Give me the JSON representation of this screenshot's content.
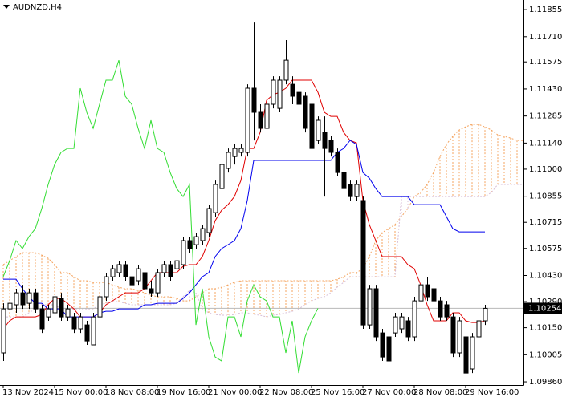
{
  "chart_data": {
    "type": "candlestick",
    "title": "AUDNZD,H4",
    "categories": [
      "13 Nov 2024",
      null,
      null,
      null,
      null,
      null,
      null,
      null,
      "15 Nov 00:00",
      null,
      null,
      null,
      null,
      null,
      null,
      null,
      "18 Nov 08:00",
      null,
      null,
      null,
      null,
      null,
      null,
      null,
      "19 Nov 16:00",
      null,
      null,
      null,
      null,
      null,
      null,
      null,
      "21 Nov 00:00",
      null,
      null,
      null,
      null,
      null,
      null,
      null,
      "22 Nov 08:00",
      null,
      null,
      null,
      null,
      null,
      null,
      null,
      "25 Nov 16:00",
      null,
      null,
      null,
      null,
      null,
      null,
      null,
      "27 Nov 00:00",
      null,
      null,
      null,
      null,
      null,
      null,
      null,
      "28 Nov 08:00",
      null,
      null,
      null,
      null,
      null,
      null,
      null,
      "29 Nov 16:00",
      null,
      null,
      null,
      null,
      null,
      null,
      null,
      null,
      null
    ],
    "candles": {
      "up_color": "#ffffff",
      "down_color": "#000000",
      "open": [
        1.10015,
        1.10251,
        1.10273,
        1.10337,
        1.10281,
        1.10337,
        1.10251,
        1.10208,
        1.1023,
        1.10307,
        1.10208,
        1.10208,
        1.10144,
        1.10165,
        1.10058,
        1.10208,
        1.10316,
        1.10423,
        1.10445,
        1.10488,
        1.10423,
        1.10402,
        1.10445,
        1.10359,
        1.10337,
        1.10445,
        1.10488,
        1.10466,
        1.10488,
        1.10617,
        1.10595,
        1.10617,
        1.1066,
        1.10767,
        1.10896,
        1.11004,
        1.11068,
        1.1109,
        1.1109,
        1.11434,
        1.11305,
        1.11219,
        1.11348,
        1.11326,
        1.11477,
        1.11455,
        1.11412,
        1.11391,
        1.11348,
        1.11154,
        1.11197,
        1.11154,
        1.1109,
        1.10982,
        1.10918,
        1.10853,
        1.10832,
        1.10165,
        1.10359,
        1.10122,
        1.10101,
        1.10122,
        1.10144,
        1.10187,
        1.10101,
        1.10294,
        1.1038,
        1.10359,
        1.10294,
        1.10273,
        1.10208,
        1.10015,
        1.10101,
        1.09929,
        1.10101,
        1.10187,
        null,
        null,
        null,
        null,
        null,
        null
      ],
      "high": [
        1.10281,
        1.10316,
        1.10359,
        1.1038,
        1.10359,
        1.10359,
        1.10273,
        1.10273,
        1.10337,
        1.10337,
        1.10273,
        1.1023,
        1.1023,
        1.10187,
        1.1023,
        1.10359,
        1.10445,
        1.10488,
        1.10509,
        1.10509,
        1.10445,
        1.10488,
        1.10488,
        1.10402,
        1.10466,
        1.10509,
        1.10509,
        1.10531,
        1.10638,
        1.10638,
        1.1066,
        1.10703,
        1.1081,
        1.10939,
        1.11111,
        1.11111,
        1.11133,
        1.11133,
        1.11455,
        1.11786,
        1.11348,
        1.11369,
        1.11498,
        1.11498,
        1.11692,
        1.11498,
        1.11434,
        1.11412,
        1.11369,
        1.11283,
        1.11283,
        1.11176,
        1.11111,
        1.11025,
        1.10939,
        1.10939,
        1.10853,
        1.1038,
        1.1038,
        1.10144,
        1.10122,
        1.1023,
        1.1023,
        1.10208,
        1.10316,
        1.10445,
        1.10423,
        1.10402,
        1.10316,
        1.10294,
        1.1023,
        1.10208,
        1.10144,
        1.10122,
        1.10208,
        1.10273,
        null,
        null,
        null,
        null,
        null,
        null
      ],
      "low": [
        1.09972,
        1.1023,
        1.1023,
        1.10251,
        1.10251,
        1.1023,
        1.10122,
        1.10187,
        1.10208,
        1.10187,
        1.10187,
        1.10122,
        1.10122,
        1.10058,
        1.10058,
        1.10187,
        1.10294,
        1.10402,
        1.10423,
        1.10402,
        1.10359,
        1.1038,
        1.10337,
        1.10316,
        1.10316,
        1.10423,
        1.10402,
        1.10445,
        1.10466,
        1.10552,
        1.10574,
        1.10595,
        1.10638,
        1.10746,
        1.10875,
        1.10982,
        1.11025,
        1.11068,
        1.11068,
        1.11154,
        1.11197,
        1.11197,
        1.11326,
        1.11305,
        1.11455,
        1.11348,
        1.11326,
        1.11197,
        1.1109,
        1.11133,
        1.10853,
        1.11068,
        1.10961,
        1.10875,
        1.10832,
        1.10832,
        1.10144,
        1.10144,
        1.10079,
        1.09972,
        1.0992,
        1.10101,
        1.10122,
        1.10079,
        1.10079,
        1.10273,
        1.10294,
        1.10273,
        1.10187,
        1.10187,
        1.09993,
        1.09993,
        1.09907,
        1.09907,
        1.10015,
        1.10165,
        null,
        null,
        null,
        null,
        null,
        null
      ],
      "close": [
        1.10251,
        1.10281,
        1.10337,
        1.10273,
        1.10337,
        1.10251,
        1.10144,
        1.10251,
        1.10316,
        1.10208,
        1.10251,
        1.10144,
        1.10208,
        1.10079,
        1.10208,
        1.10316,
        1.10423,
        1.10466,
        1.10488,
        1.10423,
        1.1038,
        1.10466,
        1.10359,
        1.10337,
        1.10445,
        1.10488,
        1.10423,
        1.10509,
        1.10617,
        1.10574,
        1.10638,
        1.10681,
        1.10789,
        1.10918,
        1.11025,
        1.1109,
        1.11111,
        1.11111,
        1.11434,
        1.11305,
        1.11219,
        1.11348,
        1.11477,
        1.11477,
        1.11584,
        1.11391,
        1.11348,
        1.11219,
        1.11111,
        1.11262,
        1.11111,
        1.1109,
        1.10982,
        1.10896,
        1.10853,
        1.10918,
        1.10165,
        1.10359,
        1.10101,
        1.09993,
        1.09972,
        1.10208,
        1.10208,
        1.10101,
        1.10294,
        1.1038,
        1.10316,
        1.10294,
        1.10208,
        1.10208,
        1.10015,
        1.10187,
        1.09907,
        1.10101,
        1.10187,
        1.10254,
        null,
        null,
        null,
        null,
        null,
        null
      ]
    },
    "lines": [
      {
        "color": "#e00000",
        "values": [
          1.10144,
          1.10187,
          1.10208,
          1.10208,
          1.10208,
          1.10208,
          1.10221,
          1.10273,
          1.10307,
          1.10307,
          1.10281,
          1.10251,
          1.10208,
          1.10208,
          1.10208,
          1.1023,
          1.10273,
          1.10294,
          1.10316,
          1.10337,
          1.10337,
          1.10337,
          1.10359,
          1.10402,
          1.10445,
          1.10445,
          1.10445,
          1.10445,
          1.10479,
          1.10488,
          1.10488,
          1.10531,
          1.10617,
          1.10724,
          1.1078,
          1.1081,
          1.10853,
          1.10939,
          1.11111,
          1.11111,
          1.11197,
          1.11369,
          1.11399,
          1.11412,
          1.11434,
          1.11477,
          1.11477,
          1.11477,
          1.11477,
          1.11412,
          1.11305,
          1.11283,
          1.11283,
          1.11197,
          1.11154,
          1.11141,
          1.10832,
          1.10703,
          1.10617,
          1.10531,
          1.10531,
          1.10531,
          1.10531,
          1.10488,
          1.10466,
          1.1038,
          1.10273,
          1.10187,
          1.10187,
          1.10187,
          1.1023,
          1.1023,
          1.10187,
          1.10178,
          1.10178,
          1.10187,
          null,
          null,
          null,
          null,
          null,
          null
        ]
      },
      {
        "color": "#0000ee",
        "values": [
          1.1041,
          1.1041,
          1.1041,
          1.10359,
          1.10316,
          1.10281,
          1.10281,
          1.10251,
          1.10251,
          1.10251,
          1.10208,
          1.10208,
          1.10208,
          1.10208,
          1.10208,
          1.1023,
          1.10238,
          1.10238,
          1.10251,
          1.10251,
          1.10251,
          1.10251,
          1.10273,
          1.10273,
          1.10281,
          1.10281,
          1.10281,
          1.10281,
          1.10307,
          1.10337,
          1.1038,
          1.10423,
          1.10445,
          1.10531,
          1.10574,
          1.10595,
          1.10617,
          1.10681,
          1.10832,
          1.11047,
          1.11047,
          1.11047,
          1.11047,
          1.11047,
          1.11047,
          1.11047,
          1.11047,
          1.11047,
          1.11047,
          1.11047,
          1.11047,
          1.11047,
          1.1109,
          1.11111,
          1.11154,
          1.11133,
          1.10982,
          1.10952,
          1.10896,
          1.10853,
          1.10853,
          1.10853,
          1.10853,
          1.10853,
          1.1081,
          1.1081,
          1.1081,
          1.1081,
          1.1081,
          1.10746,
          1.10681,
          1.10664,
          1.10664,
          1.10664,
          1.10664,
          1.10664,
          null,
          null,
          null,
          null,
          null,
          null
        ]
      },
      {
        "color": "#33dd33",
        "values": [
          1.10423,
          1.10509,
          1.10617,
          1.10574,
          1.10638,
          1.10681,
          1.10789,
          1.10918,
          1.11025,
          1.1109,
          1.11111,
          1.11111,
          1.11434,
          1.11305,
          1.11219,
          1.11348,
          1.11477,
          1.11477,
          1.11584,
          1.11391,
          1.11348,
          1.11219,
          1.11111,
          1.11262,
          1.11111,
          1.1109,
          1.10982,
          1.10896,
          1.10853,
          1.10918,
          1.10165,
          1.10359,
          1.10101,
          1.09993,
          1.09972,
          1.10208,
          1.10208,
          1.10101,
          1.10294,
          1.1038,
          1.10316,
          1.10294,
          1.10208,
          1.10208,
          1.10015,
          1.10187,
          1.09907,
          1.10101,
          1.10187,
          1.10254,
          null,
          null,
          null,
          null,
          null,
          null,
          null,
          null,
          null,
          null,
          null,
          null,
          null,
          null,
          null,
          null,
          null,
          null,
          null,
          null,
          null,
          null,
          null,
          null,
          null,
          null,
          null,
          null,
          null,
          null,
          null,
          null
        ]
      }
    ],
    "cloud": {
      "a": {
        "color": "#f4a460",
        "values": [
          1.10488,
          1.10509,
          1.10531,
          1.10552,
          1.10552,
          1.10552,
          1.10539,
          1.10522,
          1.10488,
          1.10445,
          1.10445,
          1.10423,
          1.10402,
          1.10402,
          1.10393,
          1.10393,
          1.10393,
          1.1038,
          1.10367,
          1.10359,
          1.10359,
          1.1035,
          1.10337,
          1.10325,
          1.10316,
          1.10316,
          1.10316,
          1.10307,
          1.10294,
          1.10294,
          1.10316,
          1.10337,
          1.10359,
          1.10359,
          1.10367,
          1.1038,
          1.10393,
          1.10402,
          1.10402,
          1.10402,
          1.10402,
          1.10402,
          1.10402,
          1.10402,
          1.10402,
          1.10402,
          1.10402,
          1.10402,
          1.10402,
          1.10402,
          1.10402,
          1.10402,
          1.1041,
          1.10423,
          1.10445,
          1.10445,
          1.10466,
          1.10531,
          1.10617,
          1.1066,
          1.10681,
          1.10703,
          1.10746,
          1.10789,
          1.10853,
          1.10875,
          1.10918,
          1.10982,
          1.11068,
          1.11133,
          1.11176,
          1.1121,
          1.11227,
          1.1124,
          1.1124,
          1.11227,
          1.1121,
          1.11184,
          1.11176,
          1.11167,
          1.11154,
          1.11154
        ]
      },
      "b": {
        "color": "#d8bfd8",
        "values": [
          1.10208,
          1.10208,
          1.10208,
          1.10208,
          1.1023,
          1.10251,
          1.10273,
          1.10273,
          1.10273,
          1.10251,
          1.10251,
          1.10251,
          1.10251,
          1.10251,
          1.10251,
          1.10273,
          1.10281,
          1.1029,
          1.1029,
          1.10281,
          1.10273,
          1.10273,
          1.10273,
          1.10273,
          1.10273,
          1.10273,
          1.10273,
          1.10281,
          1.10316,
          1.1035,
          1.10337,
          1.10251,
          1.1023,
          1.10221,
          1.10217,
          1.10217,
          1.10221,
          1.1023,
          1.1023,
          1.10221,
          1.10217,
          1.10208,
          1.10217,
          1.10221,
          1.1023,
          1.10238,
          1.10251,
          1.10273,
          1.10294,
          1.10307,
          1.10316,
          1.10337,
          1.10367,
          1.10393,
          1.10423,
          1.10423,
          1.10423,
          1.10423,
          1.10423,
          1.10423,
          1.10423,
          1.10423,
          1.10853,
          1.10853,
          1.10853,
          1.10853,
          1.10853,
          1.10853,
          1.10853,
          1.10853,
          1.10853,
          1.10853,
          1.10853,
          1.10853,
          1.10853,
          1.10853,
          1.10875,
          1.10918,
          1.10918,
          1.10918,
          1.10918,
          1.10918
        ]
      }
    },
    "current_price": {
      "value": 1.10254,
      "color": "#b8b8b8"
    },
    "ylim": [
      1.09843,
      1.11907
    ],
    "yticks": [
      {
        "value": 1.0986,
        "label": "1.09860"
      },
      1.10005,
      {
        "value": 1.1015,
        "label": "1.10150"
      },
      {
        "value": 1.1029,
        "label": "1.10290"
      },
      {
        "value": 1.1043,
        "label": "1.10430"
      },
      1.10575,
      1.10715,
      1.10855,
      {
        "value": 1.11,
        "label": "1.11000"
      },
      {
        "value": 1.1114,
        "label": "1.11140"
      },
      1.11285,
      {
        "value": 1.1143,
        "label": "1.11430"
      },
      1.11575,
      {
        "value": 1.1171,
        "label": "1.11710"
      },
      1.11855
    ]
  }
}
